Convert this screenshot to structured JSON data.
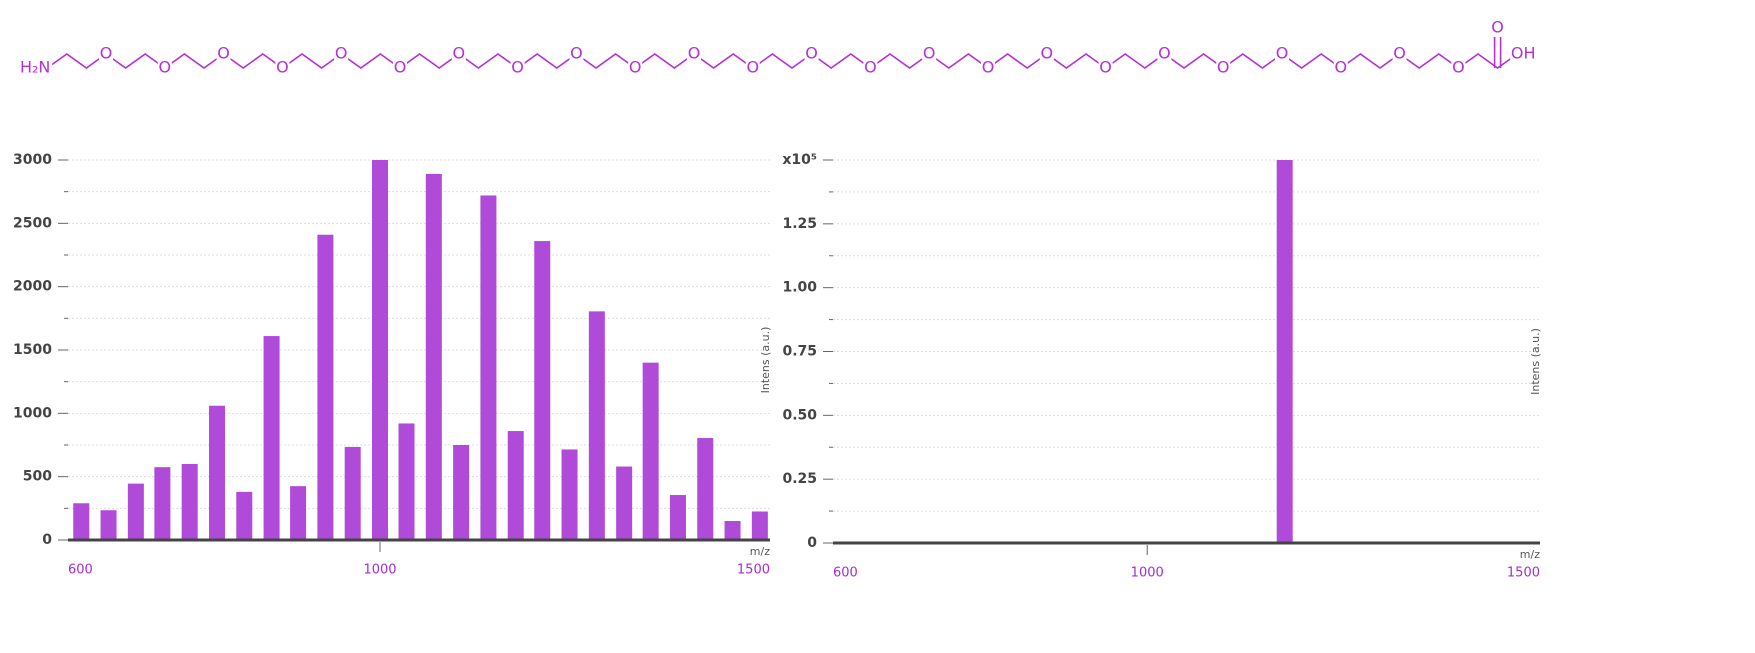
{
  "structure": {
    "left_group": "H₂N",
    "ether_oxygens": [
      "O",
      "O",
      "O",
      "O",
      "O",
      "O",
      "O",
      "O",
      "O",
      "O",
      "O",
      "O",
      "O",
      "O",
      "O",
      "O",
      "O",
      "O",
      "O",
      "O",
      "O",
      "O",
      "O",
      "O"
    ],
    "carbonyl_oxygen": "O",
    "right_group": "OH"
  },
  "chart_data": [
    {
      "type": "bar",
      "color": "#b04ad8",
      "x_label": "m/z",
      "y_label": "Intens (a.u.)",
      "x": [
        617,
        652,
        687,
        721,
        756,
        791,
        826,
        861,
        895,
        930,
        965,
        1000,
        1034,
        1069,
        1104,
        1139,
        1174,
        1208,
        1243,
        1278,
        1313,
        1347,
        1382,
        1417,
        1452,
        1487
      ],
      "values": [
        290,
        235,
        445,
        575,
        600,
        1060,
        380,
        1610,
        425,
        2410,
        735,
        3000,
        920,
        2890,
        750,
        2720,
        860,
        2360,
        715,
        1805,
        580,
        1400,
        355,
        805,
        150,
        225
      ],
      "xlim": [
        600,
        1500
      ],
      "xticks": [
        600,
        1000,
        1500
      ],
      "ylim": [
        0,
        3000
      ],
      "yticks": [
        0,
        500,
        1000,
        1500,
        2000,
        2500,
        3000
      ],
      "minor_yticks": [
        250,
        750,
        1250,
        1750,
        2250,
        2750
      ],
      "grid": true
    },
    {
      "type": "bar",
      "color": "#b04ad8",
      "x_label": "m/z",
      "y_label": "Intens (a.u.)",
      "x": [
        1175
      ],
      "values": [
        1.5
      ],
      "xlim": [
        600,
        1500
      ],
      "xticks": [
        600,
        1000,
        1500
      ],
      "ylim": [
        0,
        1.5
      ],
      "yticks": [
        0,
        0.25,
        {
          "value": 0.5,
          "label": "0.50"
        },
        0.75,
        {
          "value": 1,
          "label": "1.00"
        },
        1.25,
        {
          "value": 1.5,
          "label": "x10⁵"
        }
      ],
      "minor_yticks": [
        0.125,
        0.375,
        0.625,
        0.875,
        1.125,
        1.375
      ],
      "grid": true
    }
  ]
}
